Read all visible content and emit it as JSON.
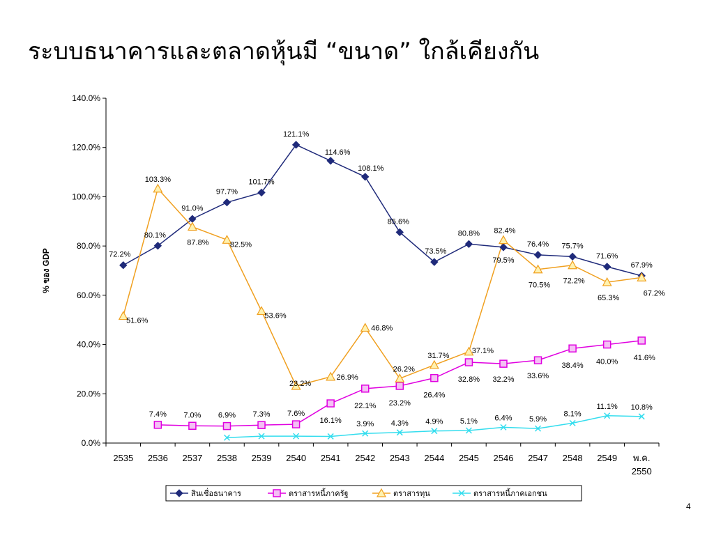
{
  "slide": {
    "title": "ระบบธนาคารและตลาดหุ้นมี “ขนาด” ใกล้เคียงกัน",
    "page_number": "4"
  },
  "chart_data": {
    "type": "line",
    "title": "",
    "xlabel": "",
    "ylabel": "% ของ GDP",
    "ylim": [
      0,
      140
    ],
    "yticks": [
      "0.0%",
      "20.0%",
      "40.0%",
      "60.0%",
      "80.0%",
      "100.0%",
      "120.0%",
      "140.0%"
    ],
    "categories": [
      "2535",
      "2536",
      "2537",
      "2538",
      "2539",
      "2540",
      "2541",
      "2542",
      "2543",
      "2544",
      "2545",
      "2546",
      "2547",
      "2548",
      "2549",
      "พ.ค. 2550"
    ],
    "legend_position": "bottom",
    "series": [
      {
        "name": "สินเชื่อธนาคาร",
        "color": "#1f2a7a",
        "marker": "diamond",
        "values": [
          72.2,
          80.1,
          91.0,
          97.7,
          101.7,
          121.1,
          114.6,
          108.1,
          85.6,
          73.5,
          80.8,
          79.5,
          76.4,
          75.7,
          71.6,
          67.9
        ],
        "labels": [
          "72.2%",
          "80.1%",
          "91.0%",
          "97.7%",
          "101.7%",
          "121.1%",
          "114.6%",
          "108.1%",
          "85.6%",
          "73.5%",
          "80.8%",
          "79.5%",
          "76.4%",
          "75.7%",
          "71.6%",
          "67.9%"
        ]
      },
      {
        "name": "ตราสารหนี้ภาครัฐ",
        "color": "#e000e0",
        "marker": "square",
        "values": [
          null,
          7.4,
          7.0,
          6.9,
          7.3,
          7.6,
          16.1,
          22.1,
          23.2,
          26.4,
          32.8,
          32.2,
          33.6,
          38.4,
          40.0,
          41.6
        ],
        "labels": [
          null,
          "7.4%",
          "7.0%",
          "6.9%",
          "7.3%",
          "7.6%",
          "16.1%",
          "22.1%",
          "23.2%",
          "26.4%",
          "32.8%",
          "32.2%",
          "33.6%",
          "38.4%",
          "40.0%",
          "41.6%"
        ]
      },
      {
        "name": "ตราสารทุน",
        "color": "#f0a020",
        "marker": "triangle",
        "values": [
          51.6,
          103.3,
          87.8,
          82.5,
          53.6,
          23.2,
          26.9,
          46.8,
          26.2,
          31.7,
          37.1,
          82.4,
          70.5,
          72.2,
          65.3,
          67.2
        ],
        "labels": [
          "51.6%",
          "103.3%",
          "87.8%",
          "82.5%",
          "53.6%",
          "23.2%",
          "26.9%",
          "46.8%",
          "26.2%",
          "31.7%",
          "37.1%",
          "82.4%",
          "70.5%",
          "72.2%",
          "65.3%",
          "67.2%"
        ]
      },
      {
        "name": "ตราสารหนี้ภาคเอกชน",
        "color": "#33ddee",
        "marker": "x",
        "values": [
          null,
          null,
          null,
          2.2,
          2.8,
          2.8,
          2.7,
          3.9,
          4.3,
          4.9,
          5.1,
          6.4,
          5.9,
          8.1,
          11.1,
          10.8
        ],
        "labels": [
          null,
          null,
          null,
          null,
          null,
          null,
          null,
          "3.9%",
          "4.3%",
          "4.9%",
          "5.1%",
          "6.4%",
          "5.9%",
          "8.1%",
          "11.1%",
          "10.8%"
        ]
      }
    ]
  }
}
